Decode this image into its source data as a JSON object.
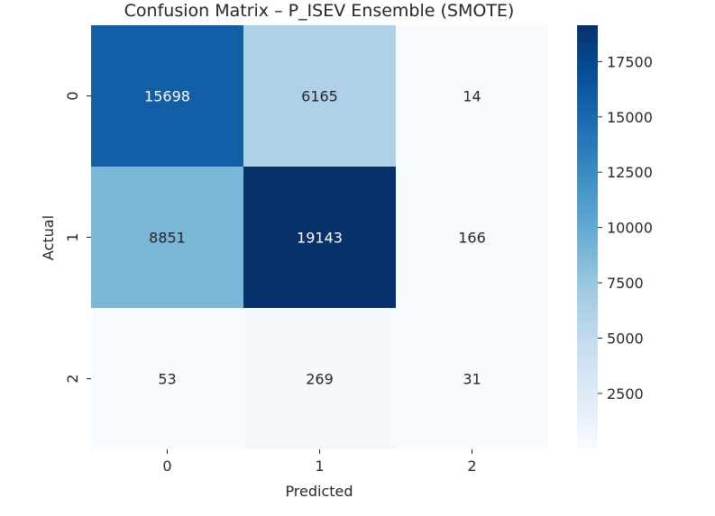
{
  "chart_data": {
    "type": "heatmap",
    "title": "Confusion Matrix – P_ISEV Ensemble (SMOTE)",
    "xlabel": "Predicted",
    "ylabel": "Actual",
    "x_categories": [
      "0",
      "1",
      "2"
    ],
    "y_categories": [
      "0",
      "1",
      "2"
    ],
    "values": [
      [
        15698,
        6165,
        14
      ],
      [
        8851,
        19143,
        166
      ],
      [
        53,
        269,
        31
      ]
    ],
    "colormap": "Blues",
    "colorbar": {
      "min": 14,
      "max": 19143,
      "ticks": [
        2500,
        5000,
        7500,
        10000,
        12500,
        15000,
        17500
      ]
    }
  }
}
